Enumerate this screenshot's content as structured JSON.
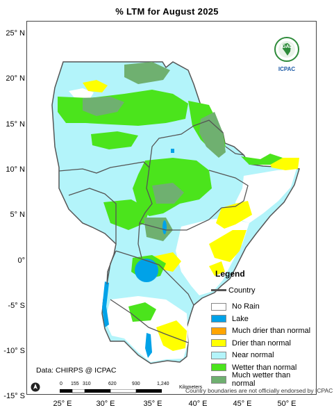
{
  "title": "% LTM  for  August  2025",
  "lat_labels": [
    "25° N",
    "20° N",
    "15° N",
    "10° N",
    "5° N",
    "0°",
    "-5° S",
    "-10° S",
    "-15° S"
  ],
  "lon_labels": [
    "25° E",
    "30° E",
    "35° E",
    "40° E",
    "45° E",
    "50° E"
  ],
  "legend": {
    "title": "Legend",
    "country_label": "Country",
    "items": [
      {
        "label": "No Rain",
        "color": "#ffffff"
      },
      {
        "label": "Lake",
        "color": "#00a2e8"
      },
      {
        "label": "Much drier than normal",
        "color": "#ffa500"
      },
      {
        "label": "Drier than normal",
        "color": "#ffff00"
      },
      {
        "label": "Near normal",
        "color": "#b3f4fa"
      },
      {
        "label": "Wetter than normal",
        "color": "#4be41c"
      },
      {
        "label": "Much wetter than normal",
        "color": "#6fb070"
      }
    ]
  },
  "data_source": "Data: CHIRPS @ ICPAC",
  "scale": {
    "unit": "Kilometers",
    "ticks": [
      "0",
      "155",
      "310",
      "620",
      "930",
      "1,240"
    ]
  },
  "disclaimer": "Country boundaries are not officially endorsed by ICPAC",
  "logo": {
    "top_text": "IGAD",
    "bottom_text": "ICPAC"
  },
  "north_symbol": "north-arrow-icon"
}
